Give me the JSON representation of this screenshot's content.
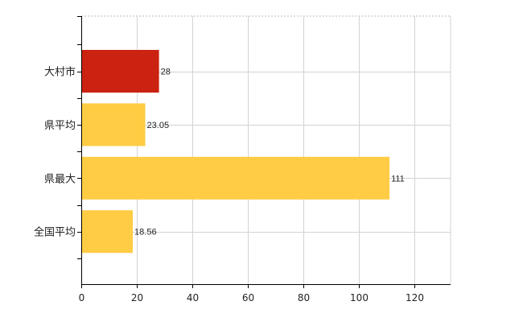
{
  "chart_data": {
    "type": "bar",
    "orientation": "horizontal",
    "categories": [
      "大村市",
      "県平均",
      "県最大",
      "全国平均"
    ],
    "values": [
      28,
      23.05,
      111,
      18.56
    ],
    "data_labels": [
      "28",
      "23.05",
      "111",
      "18.56"
    ],
    "colors": [
      "#cc2211",
      "#ffcc44",
      "#ffcc44",
      "#ffcc44"
    ],
    "xlim": [
      0,
      133
    ],
    "xticks": [
      0,
      20,
      40,
      60,
      80,
      100,
      120
    ],
    "grid": true,
    "gridColor": "#d3d3d3",
    "axisColor": "#000000",
    "title": "",
    "xlabel": "",
    "ylabel": ""
  }
}
